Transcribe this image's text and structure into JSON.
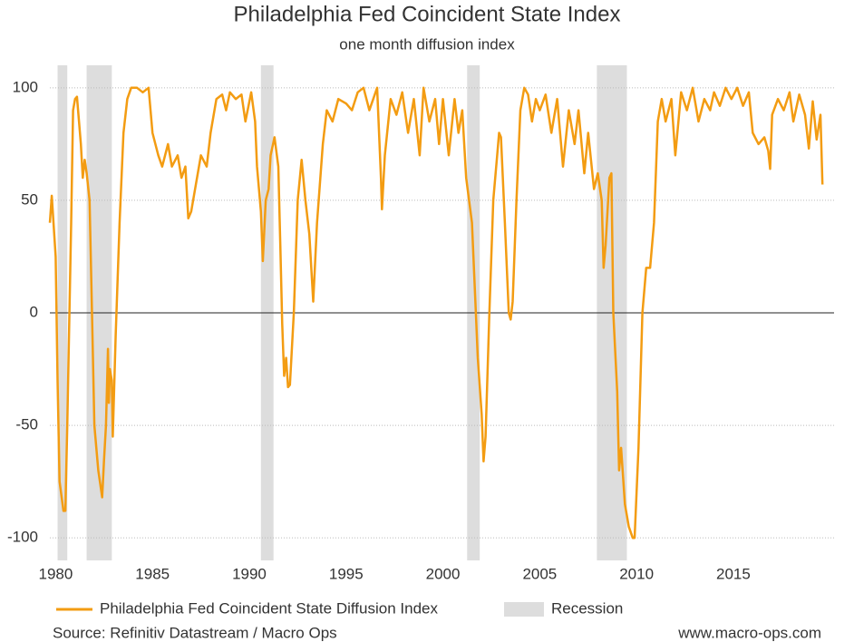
{
  "chart_data": {
    "type": "line",
    "title": "Philadelphia Fed Coincident State Index",
    "subtitle": "one month diffusion index",
    "source": "Source: Refinitiv Datastream / Macro Ops",
    "website": "www.macro-ops.com",
    "xlim": [
      1979.7,
      2020.2
    ],
    "ylim": [
      -110,
      110
    ],
    "xticks": [
      1980,
      1985,
      1990,
      1995,
      2000,
      2005,
      2010,
      2015
    ],
    "yticks": [
      -100,
      -50,
      0,
      50,
      100
    ],
    "grid": true,
    "recession": {
      "name": "Recession",
      "color": "#dddddd",
      "periods": [
        [
          1980.1,
          1980.6
        ],
        [
          1981.6,
          1982.9
        ],
        [
          1990.6,
          1991.25
        ],
        [
          2001.25,
          2001.9
        ],
        [
          2007.95,
          2009.5
        ]
      ]
    },
    "series": [
      {
        "name": "Philadelphia Fed Coincident State Diffusion Index",
        "color": "#f39c12",
        "x": [
          1979.7,
          1979.8,
          1980.0,
          1980.1,
          1980.2,
          1980.4,
          1980.5,
          1980.6,
          1980.8,
          1980.9,
          1981.0,
          1981.1,
          1981.3,
          1981.4,
          1981.5,
          1981.6,
          1981.75,
          1981.9,
          1982.0,
          1982.2,
          1982.4,
          1982.5,
          1982.6,
          1982.7,
          1982.75,
          1982.8,
          1982.9,
          1982.95,
          1983.1,
          1983.3,
          1983.5,
          1983.7,
          1983.9,
          1984.2,
          1984.5,
          1984.8,
          1985.0,
          1985.3,
          1985.5,
          1985.8,
          1986.0,
          1986.3,
          1986.5,
          1986.7,
          1986.85,
          1987.0,
          1987.5,
          1987.8,
          1988.0,
          1988.3,
          1988.6,
          1988.8,
          1989.0,
          1989.3,
          1989.6,
          1989.8,
          1990.1,
          1990.3,
          1990.4,
          1990.6,
          1990.7,
          1990.85,
          1991.0,
          1991.1,
          1991.3,
          1991.5,
          1991.6,
          1991.7,
          1991.8,
          1991.9,
          1992.0,
          1992.1,
          1992.3,
          1992.5,
          1992.7,
          1992.9,
          1993.1,
          1993.3,
          1993.5,
          1993.8,
          1994.0,
          1994.3,
          1994.6,
          1995.0,
          1995.3,
          1995.6,
          1995.9,
          1996.2,
          1996.4,
          1996.6,
          1996.8,
          1996.85,
          1997.0,
          1997.3,
          1997.6,
          1997.9,
          1998.2,
          1998.5,
          1998.8,
          1999.0,
          1999.3,
          1999.6,
          1999.8,
          2000.0,
          2000.3,
          2000.6,
          2000.8,
          2001.0,
          2001.2,
          2001.5,
          2001.7,
          2001.8,
          2002.0,
          2002.1,
          2002.2,
          2002.4,
          2002.6,
          2002.8,
          2002.9,
          2003.0,
          2003.2,
          2003.4,
          2003.5,
          2003.6,
          2003.8,
          2004.0,
          2004.2,
          2004.4,
          2004.6,
          2004.8,
          2005.0,
          2005.3,
          2005.6,
          2005.9,
          2006.2,
          2006.5,
          2006.8,
          2007.0,
          2007.3,
          2007.5,
          2007.8,
          2008.0,
          2008.2,
          2008.3,
          2008.4,
          2008.6,
          2008.7,
          2008.8,
          2009.0,
          2009.1,
          2009.2,
          2009.4,
          2009.6,
          2009.8,
          2009.9,
          2010.1,
          2010.3,
          2010.5,
          2010.7,
          2010.9,
          2011.1,
          2011.3,
          2011.5,
          2011.8,
          2012.0,
          2012.3,
          2012.6,
          2012.9,
          2013.2,
          2013.5,
          2013.8,
          2014.0,
          2014.3,
          2014.6,
          2014.9,
          2015.2,
          2015.5,
          2015.8,
          2016.0,
          2016.3,
          2016.6,
          2016.8,
          2016.9,
          2017.0,
          2017.3,
          2017.6,
          2017.9,
          2018.1,
          2018.4,
          2018.7,
          2018.9,
          2019.1,
          2019.3,
          2019.5,
          2019.6
        ],
        "values": [
          40,
          52,
          25,
          -30,
          -75,
          -88,
          -88,
          -50,
          40,
          90,
          95,
          96,
          75,
          60,
          68,
          62,
          50,
          -10,
          -50,
          -70,
          -82,
          -65,
          -50,
          -16,
          -40,
          -25,
          -30,
          -55,
          -10,
          40,
          80,
          95,
          100,
          100,
          98,
          100,
          80,
          70,
          65,
          75,
          65,
          70,
          60,
          65,
          42,
          45,
          70,
          65,
          80,
          95,
          97,
          90,
          98,
          95,
          97,
          85,
          98,
          85,
          65,
          45,
          23,
          50,
          55,
          70,
          78,
          65,
          30,
          -5,
          -28,
          -20,
          -33,
          -32,
          0,
          50,
          68,
          50,
          35,
          5,
          40,
          75,
          90,
          85,
          95,
          93,
          90,
          98,
          100,
          90,
          95,
          100,
          60,
          46,
          70,
          95,
          88,
          98,
          80,
          95,
          70,
          100,
          85,
          95,
          75,
          95,
          70,
          95,
          80,
          90,
          60,
          40,
          0,
          -20,
          -45,
          -66,
          -55,
          0,
          50,
          70,
          80,
          78,
          40,
          0,
          -3,
          5,
          50,
          90,
          100,
          97,
          85,
          95,
          90,
          97,
          80,
          95,
          65,
          90,
          75,
          90,
          62,
          80,
          55,
          62,
          50,
          20,
          30,
          60,
          62,
          0,
          -35,
          -70,
          -60,
          -85,
          -95,
          -100,
          -100,
          -60,
          0,
          20,
          20,
          40,
          85,
          95,
          85,
          95,
          70,
          98,
          90,
          100,
          85,
          95,
          90,
          98,
          92,
          100,
          95,
          100,
          92,
          98,
          80,
          75,
          78,
          72,
          64,
          88,
          95,
          90,
          98,
          85,
          97,
          88,
          73,
          94,
          77,
          88,
          57
        ]
      }
    ]
  }
}
